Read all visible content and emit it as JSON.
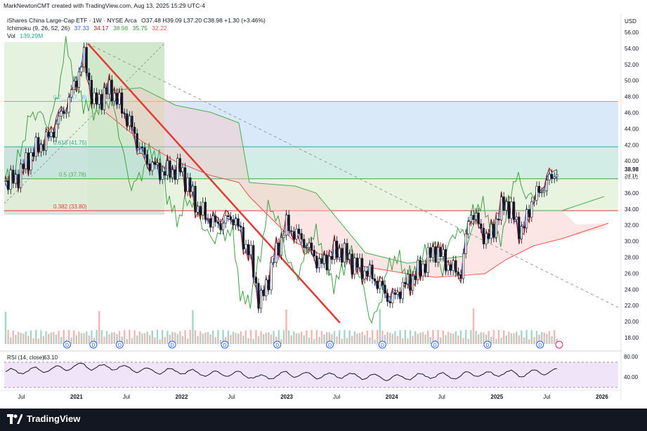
{
  "header": {
    "credit": "MarkNewtonCMT created with TradingView.com, Aug 13, 2025 15:29 UTC-4"
  },
  "legend": {
    "symbol": "iShares China Large-Cap ETF · 1W · NYSE Arca",
    "ohlc": "O37.48 H39.09 L37.20 C38.98 +1.30 (+3.46%)",
    "ichimoku_label": "Ichimoku (9, 26, 52, 26)",
    "ichimoku_values": [
      "37.33",
      "34.17",
      "38.98",
      "35.75",
      "32.22"
    ],
    "ichimoku_colors": [
      "#2962ff",
      "#b71c1c",
      "#43a047",
      "#388e3c",
      "#ef5350"
    ],
    "vol_label": "Vol",
    "vol_value": "139.29M",
    "rsi_label": "RSI (14, close)",
    "rsi_value": "63.10"
  },
  "currency": "USD",
  "price_tag": {
    "value": "38.98",
    "countdown": "2d 1h"
  },
  "brand": "TradingView",
  "fib_levels": [
    {
      "label": "0.786 (47.xx)",
      "display": "0.7__ (47._8)",
      "value": 47.4
    },
    {
      "label": "0.618 (41.75)",
      "value": 41.75
    },
    {
      "label": "0.5 (37.78)",
      "value": 37.78
    },
    {
      "label": "0.382 (33.80)",
      "value": 33.8
    }
  ],
  "chart_data": {
    "type": "candlestick",
    "title": "iShares China Large-Cap ETF · 1W · NYSE Arca",
    "y_ticks": [
      "18.00",
      "20.00",
      "22.00",
      "24.00",
      "26.00",
      "28.00",
      "30.00",
      "32.00",
      "34.00",
      "36.00",
      "38.00",
      "40.00",
      "42.00",
      "44.00",
      "46.00",
      "48.00",
      "50.00",
      "52.00",
      "54.00",
      "56.00"
    ],
    "x_ticks": [
      "Jul",
      "2021",
      "Jul",
      "2022",
      "Jul",
      "2023",
      "Jul",
      "2024",
      "Jul",
      "2025",
      "Jul",
      "2026"
    ],
    "rsi_ticks": [
      "80.00",
      "40.00"
    ],
    "ylim": [
      16.5,
      57
    ],
    "close_path": [
      [
        "2020-06",
        37.5
      ],
      [
        "2020-08",
        41
      ],
      [
        "2020-10",
        43
      ],
      [
        "2020-12",
        47
      ],
      [
        "2021-02",
        53
      ],
      [
        "2021-03",
        47
      ],
      [
        "2021-05",
        49
      ],
      [
        "2021-07",
        45
      ],
      [
        "2021-09",
        40
      ],
      [
        "2021-11",
        38.5
      ],
      [
        "2022-01",
        39
      ],
      [
        "2022-03",
        34
      ],
      [
        "2022-05",
        32
      ],
      [
        "2022-07",
        33
      ],
      [
        "2022-09",
        28
      ],
      [
        "2022-10",
        22
      ],
      [
        "2022-12",
        29
      ],
      [
        "2023-01",
        32
      ],
      [
        "2023-03",
        30
      ],
      [
        "2023-05",
        27
      ],
      [
        "2023-07",
        29
      ],
      [
        "2023-09",
        27
      ],
      [
        "2023-11",
        25.5
      ],
      [
        "2024-01",
        22.5
      ],
      [
        "2024-02",
        24
      ],
      [
        "2024-04",
        26
      ],
      [
        "2024-06",
        29
      ],
      [
        "2024-08",
        26.5
      ],
      [
        "2024-09",
        26
      ],
      [
        "2024-10",
        34
      ],
      [
        "2024-12",
        30
      ],
      [
        "2025-02",
        35
      ],
      [
        "2025-04",
        31
      ],
      [
        "2025-05",
        35
      ],
      [
        "2025-07",
        37.5
      ],
      [
        "2025-08",
        38.98
      ]
    ],
    "last_price": 38.98
  }
}
